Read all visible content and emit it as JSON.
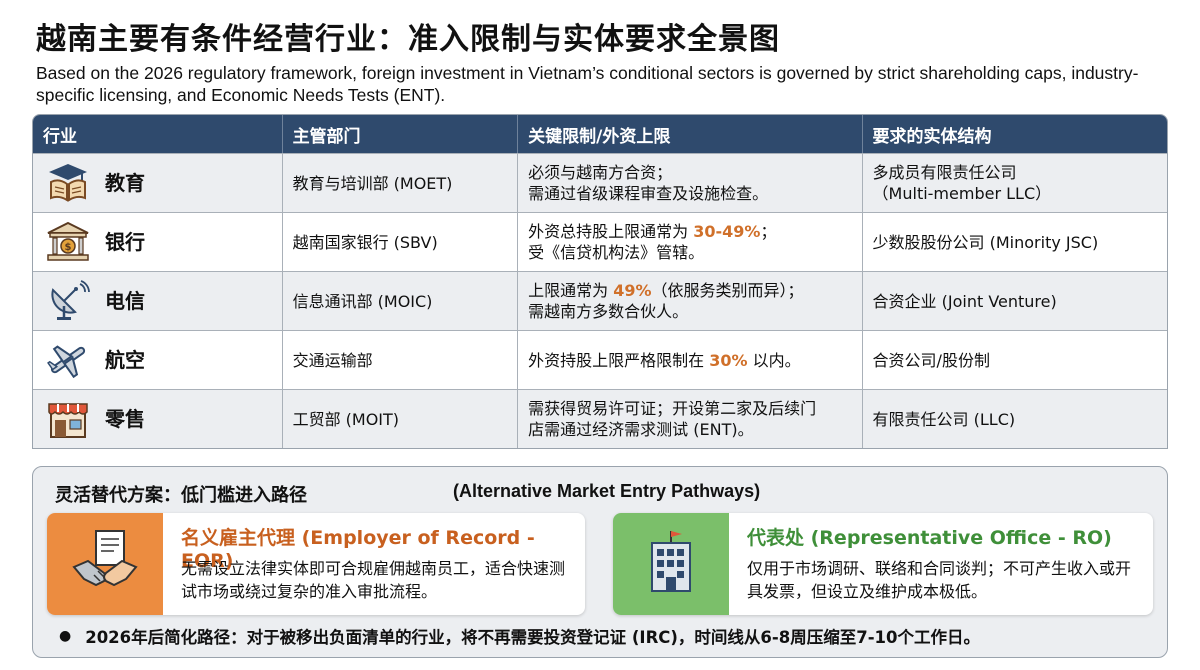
{
  "title": "越南主要有条件经营行业：准入限制与实体要求全景图",
  "subtitle": "Based on the 2026 regulatory framework, foreign investment in Vietnam’s conditional sectors is governed by strict shareholding caps, industry-specific licensing, and Economic Needs Tests (ENT).",
  "table": {
    "headers": [
      "行业",
      "主管部门",
      "关键限制/外资上限",
      "要求的实体结构"
    ],
    "rows": [
      {
        "icon": "education-book-icon",
        "sector": "教育",
        "authority": "教育与培训部 (MOET)",
        "restriction": "必须与越南方合资；\n需通过省级课程审查及设施检查。",
        "entity": "多成员有限责任公司\n（Multi-member LLC）"
      },
      {
        "icon": "bank-icon",
        "sector": "银行",
        "authority": "越南国家银行 (SBV)",
        "restriction_pre": "外资总持股上限通常为 ",
        "restriction_hl": "30-49%",
        "restriction_post": "；\n受《信贷机构法》管辖。",
        "entity": "少数股股份公司 (Minority JSC)"
      },
      {
        "icon": "satellite-dish-icon",
        "sector": "电信",
        "authority": "信息通讯部 (MOIC)",
        "restriction_pre": "上限通常为 ",
        "restriction_hl": "49%",
        "restriction_post": "（依服务类别而异）；\n需越南方多数合伙人。",
        "entity": "合资企业 (Joint Venture)"
      },
      {
        "icon": "airplane-icon",
        "sector": "航空",
        "authority": "交通运输部",
        "restriction_pre": "外资持股上限严格限制在 ",
        "restriction_hl": "30%",
        "restriction_post": " 以内。",
        "entity": "合资公司/股份制"
      },
      {
        "icon": "storefront-icon",
        "sector": "零售",
        "authority": "工贸部 (MOIT)",
        "restriction": "需获得贸易许可证；开设第二家及后续门\n店需通过经济需求测试 (ENT)。",
        "entity": "有限责任公司 (LLC)"
      }
    ]
  },
  "alternatives": {
    "title": "灵活替代方案：低门槛进入路径",
    "title_en": "(Alternative Market Entry Pathways)",
    "eor": {
      "title": "名义雇主代理 (Employer of Record - EOR)",
      "text": "无需设立法律实体即可合规雇佣越南员工，适合快速测试市场或绕过复杂的准入审批流程。"
    },
    "ro": {
      "title": "代表处 (Representative Office - RO)",
      "text": "仅用于市场调研、联络和合同谈判；不可产生收入或开具发票，但设立及维护成本极低。"
    },
    "note": "2026年后简化路径：对于被移出负面清单的行业，将不再需要投资登记证 (IRC)，时间线从6-8周压缩至7-10个工作日。"
  },
  "colors": {
    "header": "#2f4a6d",
    "highlight": "#d0702a",
    "eor": "#ec8c40",
    "ro": "#7bbf6a"
  }
}
